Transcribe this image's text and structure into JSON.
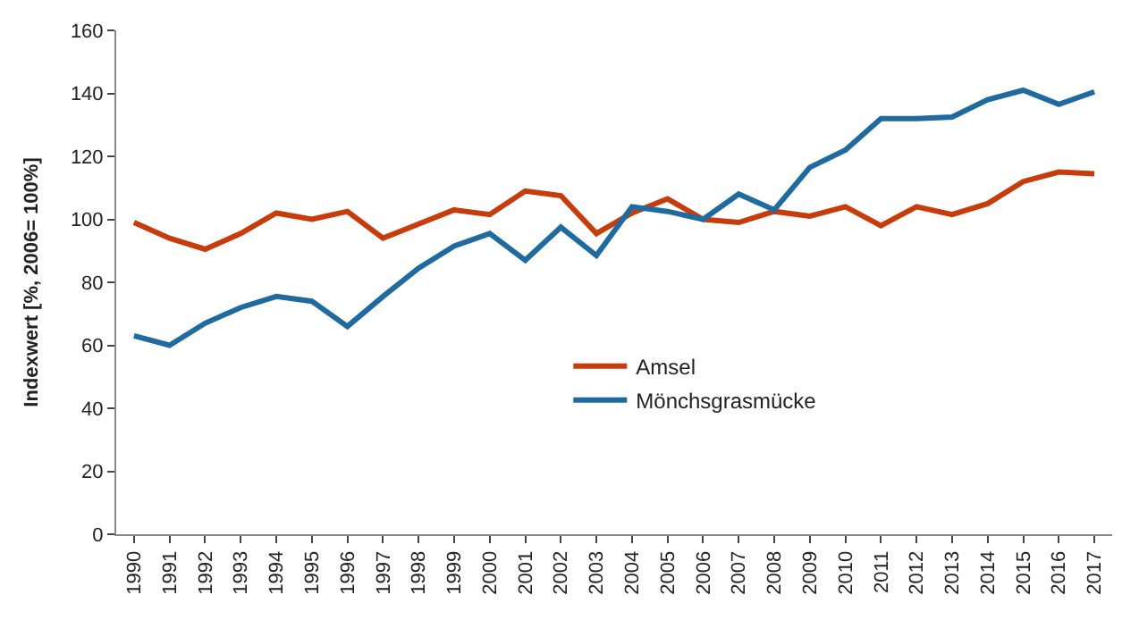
{
  "chart_data": {
    "type": "line",
    "ylabel": "Indexwert [%, 2006= 100%]",
    "categories": [
      "1990",
      "1991",
      "1992",
      "1993",
      "1994",
      "1995",
      "1996",
      "1997",
      "1998",
      "1999",
      "2000",
      "2001",
      "2002",
      "2003",
      "2004",
      "2005",
      "2006",
      "2007",
      "2008",
      "2009",
      "2010",
      "2011",
      "2012",
      "2013",
      "2014",
      "2015",
      "2016",
      "2017"
    ],
    "series": [
      {
        "name": "Amsel",
        "color": "#c83c0c",
        "values": [
          99,
          94,
          90.5,
          95.5,
          102,
          100,
          102.5,
          94,
          98.5,
          103,
          101.5,
          109,
          107.5,
          95.5,
          102,
          106.5,
          100,
          99,
          102.5,
          101,
          104,
          98,
          104,
          101.5,
          105,
          112,
          115,
          114.5
        ]
      },
      {
        "name": "Mönchsgrasmücke",
        "color": "#1f6ba0",
        "values": [
          63,
          60,
          67,
          72,
          75.5,
          74,
          66,
          75.5,
          84.5,
          91.5,
          95.5,
          87,
          97.5,
          88.5,
          104,
          102.5,
          100,
          108,
          103,
          116.5,
          122,
          132,
          132,
          132.5,
          138,
          141,
          136.5,
          140.5
        ]
      }
    ],
    "ylim": [
      0,
      160
    ],
    "yticks": [
      0,
      20,
      40,
      60,
      80,
      100,
      120,
      140,
      160
    ],
    "grid": false,
    "legend": "bottom",
    "marker": "none",
    "line_style": "solid"
  }
}
